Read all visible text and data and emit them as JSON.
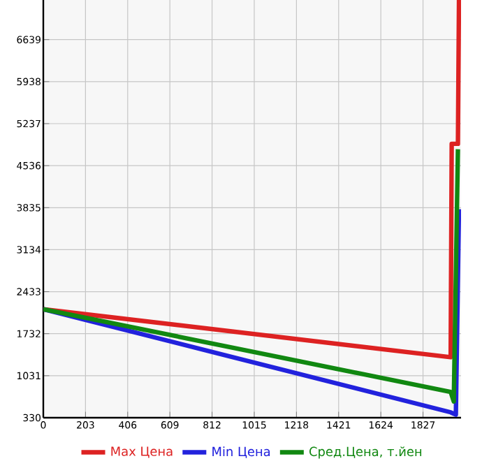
{
  "chart_data": {
    "type": "line",
    "xlim": [
      0,
      2010
    ],
    "ylim": [
      330,
      7300
    ],
    "xticks": [
      0,
      203,
      406,
      609,
      812,
      1015,
      1218,
      1421,
      1624,
      1827
    ],
    "yticks": [
      330,
      1031,
      1732,
      2433,
      3134,
      3835,
      4536,
      5237,
      5938,
      6639
    ],
    "grid": true,
    "legend": "bottom",
    "marker": "none",
    "line_style": "solid",
    "series": [
      {
        "name": "Max Цена",
        "color": "#dd2222",
        "x": [
          0,
          1960,
          1965,
          1995,
          2000
        ],
        "values": [
          2140,
          1340,
          4900,
          4900,
          7300
        ]
      },
      {
        "name": "Min Цена",
        "color": "#2222dd",
        "x": [
          0,
          1960,
          1985,
          2000
        ],
        "values": [
          2140,
          420,
          380,
          3810
        ]
      },
      {
        "name": "Сред.Цена, т.йен",
        "color": "#118811",
        "x": [
          0,
          1960,
          1975,
          1995
        ],
        "values": [
          2140,
          760,
          600,
          4810
        ]
      }
    ]
  }
}
